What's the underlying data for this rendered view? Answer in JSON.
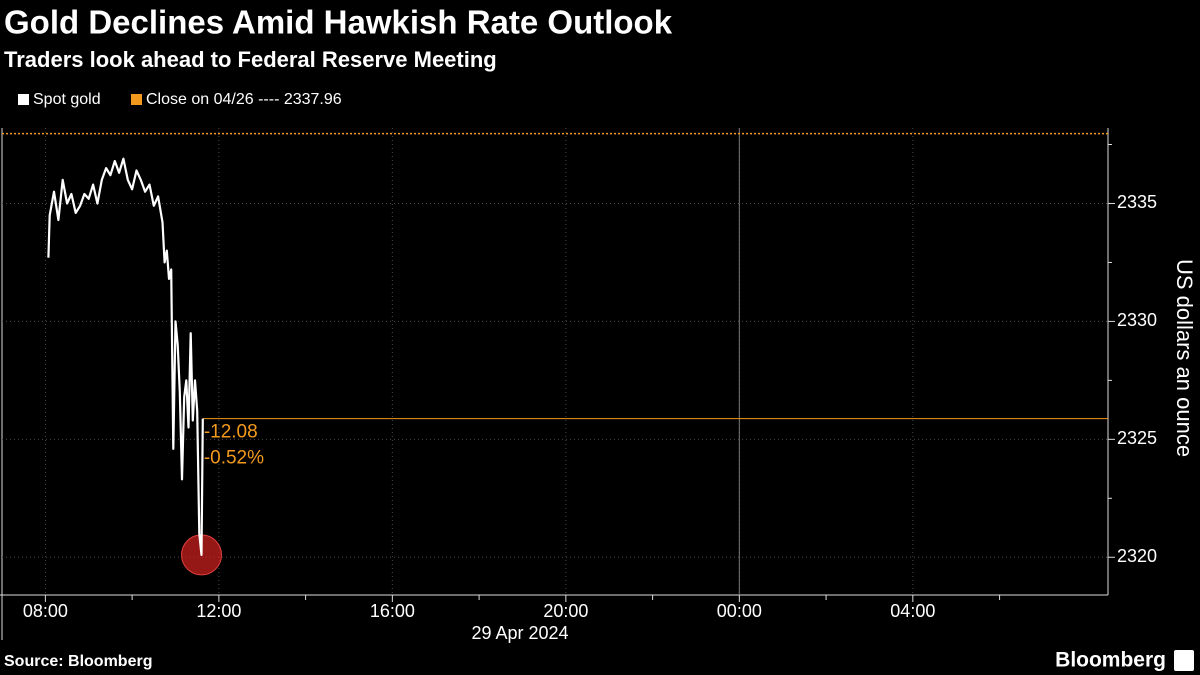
{
  "chart_data": {
    "type": "line",
    "title": "Gold Declines Amid Hawkish Rate Outlook",
    "subtitle": "Traders look ahead to Federal Reserve Meeting",
    "y_label": "US dollars an ounce",
    "x_label": "29 Apr 2024",
    "source": "Source: Bloomberg",
    "brand": "Bloomberg",
    "series": [
      {
        "name": "Spot gold",
        "color": "#ffffff",
        "x": [
          8.07,
          8.1,
          8.2,
          8.3,
          8.4,
          8.5,
          8.6,
          8.7,
          8.8,
          8.9,
          9.0,
          9.1,
          9.2,
          9.3,
          9.4,
          9.5,
          9.6,
          9.7,
          9.8,
          9.9,
          10.0,
          10.1,
          10.2,
          10.3,
          10.4,
          10.5,
          10.6,
          10.7,
          10.75,
          10.8,
          10.85,
          10.9,
          10.95,
          11.0,
          11.05,
          11.1,
          11.15,
          11.2,
          11.25,
          11.3,
          11.35,
          11.4,
          11.45,
          11.5,
          11.55,
          11.6,
          11.63
        ],
        "values": [
          2332.7,
          2334.5,
          2335.5,
          2334.3,
          2336.0,
          2335.0,
          2335.4,
          2334.6,
          2334.9,
          2335.4,
          2335.2,
          2335.8,
          2335.0,
          2336.0,
          2336.5,
          2336.2,
          2336.8,
          2336.3,
          2336.9,
          2336.0,
          2335.6,
          2336.4,
          2336.0,
          2335.5,
          2335.8,
          2334.9,
          2335.3,
          2334.2,
          2332.5,
          2333.0,
          2331.8,
          2332.2,
          2324.6,
          2330.0,
          2329.0,
          2327.0,
          2323.3,
          2326.8,
          2327.5,
          2325.5,
          2329.5,
          2325.8,
          2327.5,
          2326.2,
          2321.0,
          2320.1,
          2325.88
        ]
      }
    ],
    "reference_line": {
      "legend": "Close on 04/26 ---- 2337.96",
      "value": 2337.96,
      "color": "#f39a1e"
    },
    "change_labels": [
      {
        "value": -12.08,
        "label": "-12.08"
      },
      {
        "value": -0.52,
        "label": "-0.52%"
      }
    ],
    "low_marker_color": "#c8201e",
    "xlim": [
      7,
      32.5
    ],
    "xticks": [
      {
        "value": 8,
        "label": "08:00"
      },
      {
        "value": 12,
        "label": "12:00"
      },
      {
        "value": 16,
        "label": "16:00"
      },
      {
        "value": 20,
        "label": "20:00"
      },
      {
        "value": 24,
        "label": "00:00"
      },
      {
        "value": 28,
        "label": "04:00"
      }
    ],
    "xminorticks": [
      10,
      14,
      18,
      22,
      26,
      30
    ],
    "day_divider": 24,
    "ylim": [
      2318.4,
      2338.2
    ],
    "yticks": [
      2320,
      2325,
      2330,
      2335
    ],
    "yminorticks": [
      2322.5,
      2327.5,
      2332.5,
      2337.5
    ],
    "grid": true
  }
}
